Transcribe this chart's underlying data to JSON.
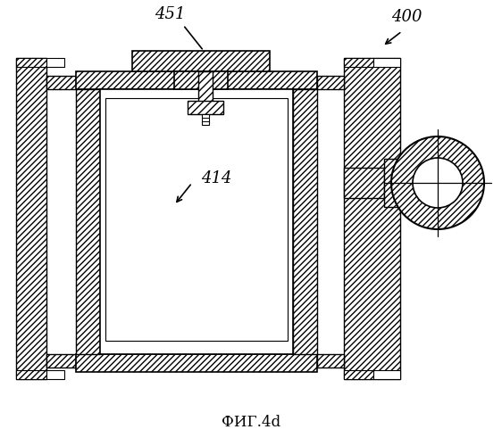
{
  "background_color": "#ffffff",
  "line_color": "#000000",
  "label_451": "451",
  "label_414": "414",
  "label_400": "400",
  "caption": "ФИГ.4d",
  "fig_width": 5.62,
  "fig_height": 5.0,
  "dpi": 100
}
